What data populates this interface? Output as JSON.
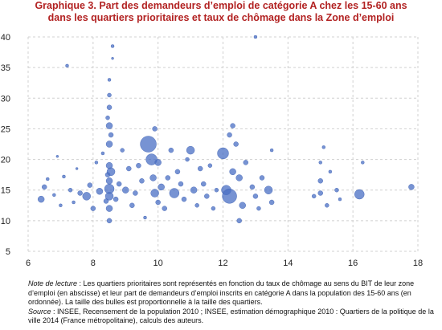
{
  "title": {
    "line1": "Graphique 3. Part des demandeurs d’emploi de catégorie A chez les 15-60 ans",
    "line2": "dans les quartiers prioritaires et taux de chômage dans la Zone d’emploi"
  },
  "notes": {
    "lecture_label": "Note de lecture",
    "lecture_text": " : Les quartiers prioritaires sont représentés en fonction du taux de chômage au sens du BIT de leur zone d’emploi (en abscisse) et leur part de demandeurs d’emploi inscrits en catégorie A dans la population des 15-60 ans (en ordonnée). La taille des bulles est proportionnelle à la taille des quartiers.",
    "source_label": "Source",
    "source_text": " : INSEE, Recensement de la population 2010 ; INSEE, estimation démographique 2010 : Quartiers de la politique de la ville 2014 (France métropolitaine), calculs des auteurs."
  },
  "colors": {
    "bubble": "#4a6fc4",
    "grid": "#d0d0d0",
    "title": "#b22222"
  },
  "chart_data": {
    "type": "scatter",
    "title": "",
    "xlabel": "",
    "ylabel": "",
    "xlim": [
      6,
      18
    ],
    "ylim": [
      5,
      40
    ],
    "xticks": [
      6,
      8,
      10,
      12,
      14,
      16,
      18
    ],
    "yticks": [
      5,
      10,
      15,
      20,
      25,
      30,
      35,
      40
    ],
    "grid": true,
    "bubble_size_note": "proportional to neighbourhood size",
    "points": [
      [
        6.4,
        13.5,
        4
      ],
      [
        6.5,
        15.5,
        3
      ],
      [
        6.6,
        16.8,
        2
      ],
      [
        6.8,
        14.2,
        2
      ],
      [
        6.9,
        20.5,
        1.5
      ],
      [
        7.0,
        12.5,
        2
      ],
      [
        7.1,
        17.2,
        2
      ],
      [
        7.2,
        35.3,
        2
      ],
      [
        7.3,
        15.0,
        2.5
      ],
      [
        7.4,
        13.0,
        2
      ],
      [
        7.5,
        18.5,
        1.5
      ],
      [
        7.6,
        14.5,
        3
      ],
      [
        7.8,
        14.0,
        5
      ],
      [
        7.9,
        15.8,
        3
      ],
      [
        8.0,
        12.0,
        3
      ],
      [
        8.1,
        19.5,
        2
      ],
      [
        8.2,
        14.8,
        4
      ],
      [
        8.3,
        21.0,
        2
      ],
      [
        8.4,
        13.2,
        3
      ],
      [
        8.45,
        17.5,
        3
      ],
      [
        8.5,
        14.0,
        5
      ],
      [
        8.5,
        16.5,
        4
      ],
      [
        8.5,
        19.0,
        4
      ],
      [
        8.5,
        22.5,
        4
      ],
      [
        8.5,
        25.5,
        4
      ],
      [
        8.5,
        28.5,
        3
      ],
      [
        8.5,
        30.5,
        2.5
      ],
      [
        8.5,
        33.0,
        2
      ],
      [
        8.5,
        12.0,
        4
      ],
      [
        8.5,
        10.0,
        3
      ],
      [
        8.5,
        15.2,
        6
      ],
      [
        8.55,
        18.0,
        5
      ],
      [
        8.6,
        38.5,
        2
      ],
      [
        8.6,
        36.5,
        1.5
      ],
      [
        8.55,
        24.0,
        3
      ],
      [
        8.45,
        26.8,
        2.5
      ],
      [
        8.7,
        13.5,
        3
      ],
      [
        8.8,
        16.0,
        3
      ],
      [
        8.9,
        21.5,
        2.5
      ],
      [
        9.0,
        15.0,
        4
      ],
      [
        9.1,
        18.5,
        3
      ],
      [
        9.2,
        12.5,
        3
      ],
      [
        9.3,
        14.5,
        3
      ],
      [
        9.4,
        19.0,
        3
      ],
      [
        9.5,
        16.5,
        3
      ],
      [
        9.6,
        10.5,
        2
      ],
      [
        9.7,
        22.5,
        10
      ],
      [
        9.8,
        20.0,
        7
      ],
      [
        9.85,
        17.0,
        4
      ],
      [
        9.9,
        14.5,
        5
      ],
      [
        9.9,
        25.0,
        3
      ],
      [
        10.0,
        13.0,
        3
      ],
      [
        10.0,
        19.5,
        4
      ],
      [
        10.1,
        15.5,
        4
      ],
      [
        10.2,
        12.0,
        3
      ],
      [
        10.3,
        17.0,
        3
      ],
      [
        10.4,
        21.5,
        3
      ],
      [
        10.5,
        14.5,
        6
      ],
      [
        10.6,
        18.0,
        3
      ],
      [
        10.7,
        16.0,
        3
      ],
      [
        10.8,
        13.5,
        3
      ],
      [
        10.9,
        20.0,
        2.5
      ],
      [
        11.0,
        21.5,
        5
      ],
      [
        11.1,
        15.0,
        4
      ],
      [
        11.2,
        12.5,
        2.5
      ],
      [
        11.3,
        18.5,
        3
      ],
      [
        11.4,
        16.0,
        3
      ],
      [
        11.5,
        14.0,
        3
      ],
      [
        11.6,
        19.0,
        2.5
      ],
      [
        11.7,
        12.0,
        2.5
      ],
      [
        11.8,
        15.0,
        2.5
      ],
      [
        12.0,
        21.0,
        7
      ],
      [
        12.1,
        15.0,
        6
      ],
      [
        12.2,
        14.0,
        9
      ],
      [
        12.3,
        18.0,
        4
      ],
      [
        12.3,
        25.5,
        3
      ],
      [
        12.2,
        24.0,
        3
      ],
      [
        12.4,
        22.5,
        3
      ],
      [
        12.5,
        17.0,
        4
      ],
      [
        12.6,
        12.5,
        4
      ],
      [
        12.7,
        19.5,
        3
      ],
      [
        12.5,
        10.0,
        3
      ],
      [
        12.9,
        15.5,
        3
      ],
      [
        13.0,
        14.0,
        3
      ],
      [
        13.0,
        40.0,
        2
      ],
      [
        13.1,
        12.0,
        2.5
      ],
      [
        13.2,
        17.0,
        3
      ],
      [
        13.4,
        15.0,
        5
      ],
      [
        13.5,
        13.0,
        3
      ],
      [
        13.5,
        21.5,
        2
      ],
      [
        14.8,
        14.0,
        2.5
      ],
      [
        15.0,
        16.5,
        3
      ],
      [
        15.0,
        14.5,
        3
      ],
      [
        15.0,
        19.5,
        2
      ],
      [
        15.1,
        22.0,
        2
      ],
      [
        15.2,
        12.5,
        2.5
      ],
      [
        15.3,
        18.0,
        2
      ],
      [
        15.5,
        15.0,
        2.5
      ],
      [
        15.6,
        13.5,
        2
      ],
      [
        16.2,
        14.3,
        6
      ],
      [
        16.3,
        19.5,
        2
      ],
      [
        17.8,
        15.5,
        3.5
      ]
    ]
  }
}
